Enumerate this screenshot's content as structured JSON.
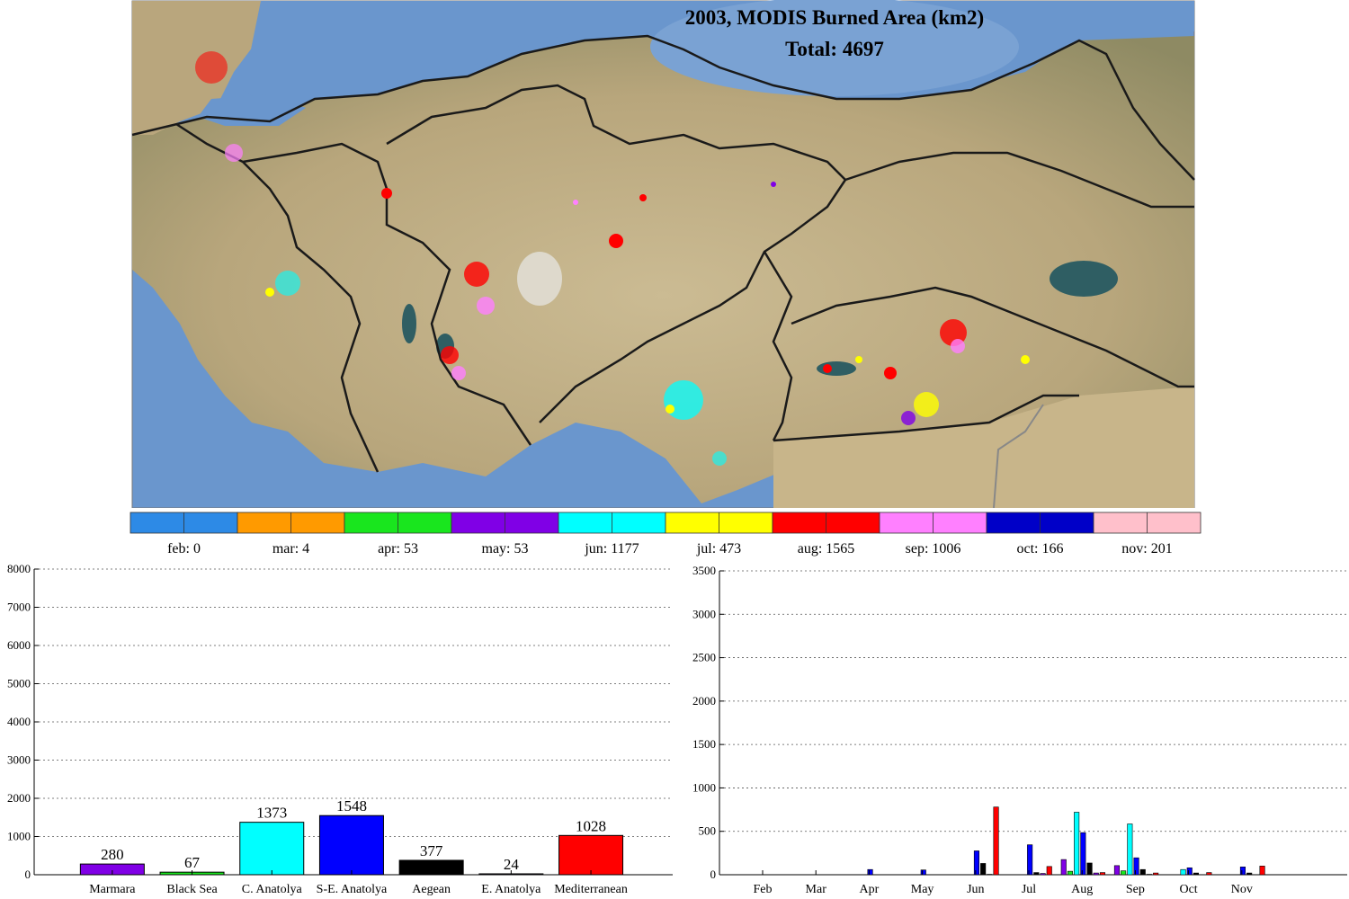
{
  "map": {
    "title_line1": "2003, MODIS Burned Area (km2)",
    "title_line2": "Total: 4697",
    "colors": {
      "sea": "#6a96cd",
      "land": "#c9b98e",
      "border": "#1a1a1a",
      "lake": "#2f5e63"
    }
  },
  "legend": [
    {
      "label": "feb:",
      "value": "0",
      "color": "#2d8ae6"
    },
    {
      "label": "mar:",
      "value": "4",
      "color": "#ff9a00"
    },
    {
      "label": "apr:",
      "value": "53",
      "color": "#19e61e"
    },
    {
      "label": "may:",
      "value": "53",
      "color": "#8000e6"
    },
    {
      "label": "jun:",
      "value": "1177",
      "color": "#00ffff"
    },
    {
      "label": "jul:",
      "value": "473",
      "color": "#ffff00"
    },
    {
      "label": "aug:",
      "value": "1565",
      "color": "#ff0000"
    },
    {
      "label": "sep:",
      "value": "1006",
      "color": "#ff80ff"
    },
    {
      "label": "oct:",
      "value": "166",
      "color": "#0000c8"
    },
    {
      "label": "nov:",
      "value": "201",
      "color": "#ffc0cb"
    }
  ],
  "chart_data": [
    {
      "type": "bar",
      "categories": [
        "Marmara",
        "Black Sea",
        "C. Anatolya",
        "S-E. Anatolya",
        "Aegean",
        "E. Anatolya",
        "Mediterranean"
      ],
      "values": [
        280,
        67,
        1373,
        1548,
        377,
        24,
        1028
      ],
      "data_labels": [
        "280",
        "67",
        "1373",
        "1548",
        "377",
        "24",
        "1028"
      ],
      "colors": [
        "#8000e6",
        "#19e61e",
        "#00ffff",
        "#0000ff",
        "#000000",
        "#8000e6",
        "#ff0000"
      ],
      "ylim": [
        0,
        8000
      ],
      "yticks": [
        "0",
        "1000",
        "2000",
        "3000",
        "4000",
        "5000",
        "6000",
        "7000",
        "8000"
      ],
      "grid": true
    },
    {
      "type": "bar",
      "categories": [
        "Feb",
        "Mar",
        "Apr",
        "May",
        "Jun",
        "Jul",
        "Aug",
        "Sep",
        "Oct",
        "Nov"
      ],
      "series": [
        {
          "color": "#8000e6",
          "values": [
            0,
            0,
            0,
            0,
            0,
            0,
            175,
            105,
            0,
            0
          ]
        },
        {
          "color": "#19e61e",
          "values": [
            0,
            0,
            0,
            0,
            0,
            0,
            40,
            45,
            0,
            0
          ]
        },
        {
          "color": "#00ffff",
          "values": [
            0,
            0,
            0,
            0,
            0,
            0,
            720,
            585,
            60,
            0
          ]
        },
        {
          "color": "#0000ff",
          "values": [
            0,
            0,
            60,
            55,
            275,
            345,
            485,
            195,
            80,
            90
          ]
        },
        {
          "color": "#000000",
          "values": [
            0,
            0,
            0,
            0,
            130,
            25,
            135,
            60,
            20,
            20
          ]
        },
        {
          "color": "#8000e6",
          "values": [
            0,
            0,
            0,
            0,
            5,
            15,
            20,
            5,
            0,
            0
          ]
        },
        {
          "color": "#ff0000",
          "values": [
            0,
            0,
            0,
            0,
            780,
            95,
            25,
            20,
            25,
            100
          ]
        }
      ],
      "ylim": [
        0,
        3500
      ],
      "yticks": [
        "0",
        "500",
        "1000",
        "1500",
        "2000",
        "2500",
        "3000",
        "3500"
      ],
      "grid": true
    }
  ]
}
